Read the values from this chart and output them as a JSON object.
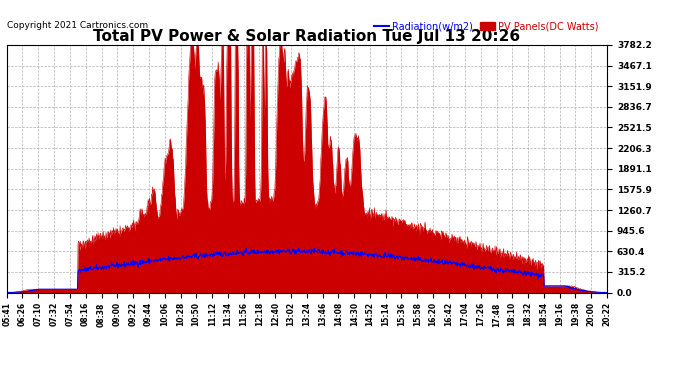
{
  "title": "Total PV Power & Solar Radiation Tue Jul 13 20:26",
  "copyright": "Copyright 2021 Cartronics.com",
  "legend_radiation": "Radiation(w/m2)",
  "legend_pv": "PV Panels(DC Watts)",
  "ymax": 3782.2,
  "ymin": 0.0,
  "yticks": [
    0.0,
    315.2,
    630.4,
    945.6,
    1260.7,
    1575.9,
    1891.1,
    2206.3,
    2521.5,
    2836.7,
    3151.9,
    3467.1,
    3782.2
  ],
  "color_radiation": "#0000ff",
  "color_pv": "#cc0000",
  "background_color": "#ffffff",
  "grid_color": "#b0b0b0",
  "title_fontsize": 11,
  "copyright_fontsize": 6.5,
  "xtick_fontsize": 5.5,
  "ytick_fontsize": 6.5,
  "x_labels": [
    "05:41",
    "06:26",
    "07:10",
    "07:32",
    "07:54",
    "08:16",
    "08:38",
    "09:00",
    "09:22",
    "09:44",
    "10:06",
    "10:28",
    "10:50",
    "11:12",
    "11:34",
    "11:56",
    "12:18",
    "12:40",
    "13:02",
    "13:24",
    "13:46",
    "14:08",
    "14:30",
    "14:52",
    "15:14",
    "15:36",
    "15:58",
    "16:20",
    "16:42",
    "17:04",
    "17:26",
    "17:48",
    "18:10",
    "18:32",
    "18:54",
    "19:16",
    "19:38",
    "20:00",
    "20:22"
  ]
}
